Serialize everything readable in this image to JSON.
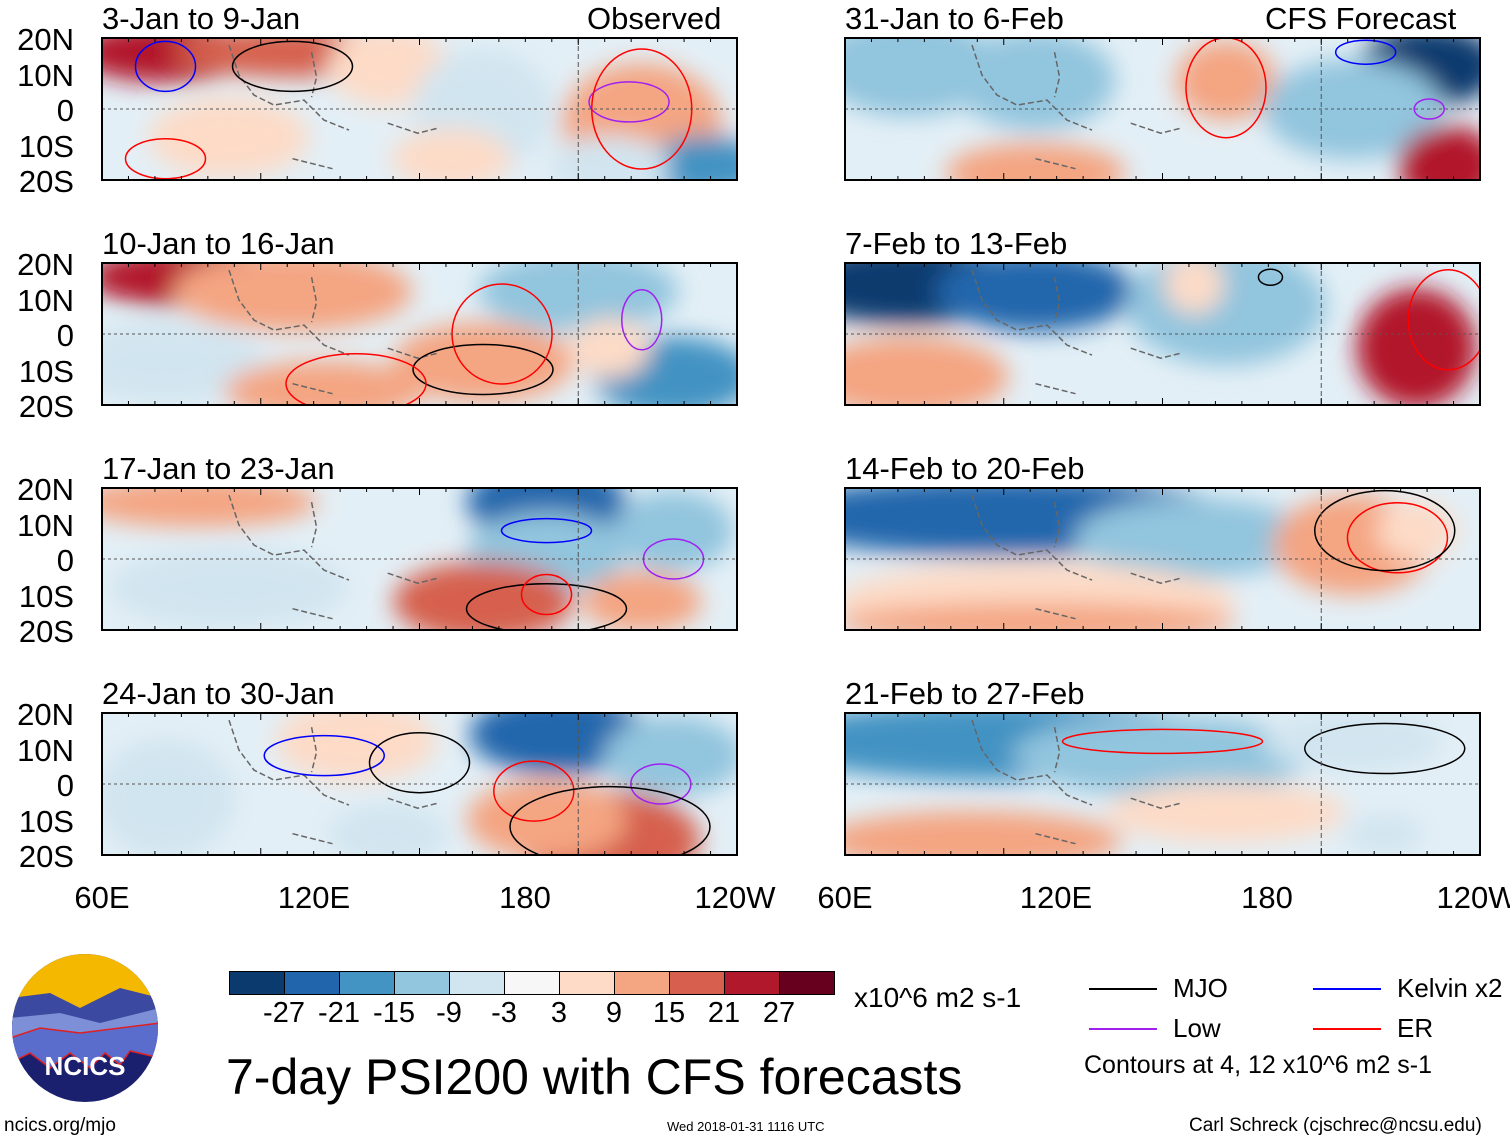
{
  "title": "7-day PSI200 with CFS forecasts",
  "left_header_label": "Observed",
  "right_header_label": "CFS Forecast",
  "units": "x10^6 m2 s-1",
  "contour_note": "Contours at 4, 12 x10^6 m2 s-1",
  "footer": {
    "site": "ncics.org/mjo",
    "timestamp": "Wed 2018-01-31 1116 UTC",
    "author": "Carl Schreck (cjschrec@ncsu.edu)"
  },
  "logo_text": "NCICS",
  "chart_data": {
    "type": "heatmap",
    "title": "7-day PSI200 with CFS forecasts",
    "lat_ticks": [
      "20N",
      "10N",
      "0",
      "10S",
      "20S"
    ],
    "lon_ticks": [
      "60E",
      "120E",
      "180",
      "120W"
    ],
    "panels": [
      {
        "title": "3-Jan to 9-Jan",
        "source": "Observed"
      },
      {
        "title": "10-Jan to 16-Jan",
        "source": "Observed"
      },
      {
        "title": "17-Jan to 23-Jan",
        "source": "Observed"
      },
      {
        "title": "24-Jan to 30-Jan",
        "source": "Observed"
      },
      {
        "title": "31-Jan to 6-Feb",
        "source": "CFS Forecast"
      },
      {
        "title": "7-Feb to 13-Feb",
        "source": "CFS Forecast"
      },
      {
        "title": "14-Feb to 20-Feb",
        "source": "CFS Forecast"
      },
      {
        "title": "21-Feb to 27-Feb",
        "source": "CFS Forecast"
      }
    ],
    "colorbar": {
      "labels": [
        "-27",
        "-21",
        "-15",
        "-9",
        "-3",
        "3",
        "9",
        "15",
        "21",
        "27"
      ],
      "colors": [
        "#0b3a6e",
        "#2166ac",
        "#4393c3",
        "#92c5de",
        "#d1e5f0",
        "#f7f7f7",
        "#fddbc7",
        "#f4a582",
        "#d6604d",
        "#b2182b",
        "#67001f"
      ]
    },
    "legend": [
      {
        "label": "MJO",
        "color": "#000000"
      },
      {
        "label": "Kelvin x2",
        "color": "#0000ff"
      },
      {
        "label": "Low",
        "color": "#a020f0"
      },
      {
        "label": "ER",
        "color": "#ff0000"
      }
    ]
  }
}
